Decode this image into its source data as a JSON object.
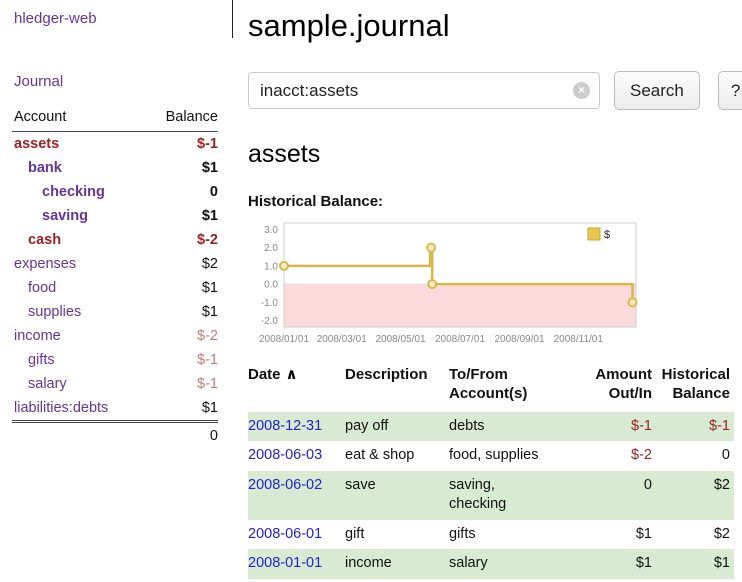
{
  "app": {
    "title": "hledger-web"
  },
  "sidebar": {
    "journal_link": "Journal",
    "header": {
      "account": "Account",
      "balance": "Balance"
    },
    "accounts": [
      {
        "name": "assets",
        "depth": 1,
        "bold": true,
        "red": true,
        "balance": "$-1",
        "balance_style": "neg-strong"
      },
      {
        "name": "bank",
        "depth": 2,
        "bold": true,
        "red": false,
        "balance": "$1",
        "balance_style": "pos"
      },
      {
        "name": "checking",
        "depth": 3,
        "bold": true,
        "red": false,
        "balance": "0",
        "balance_style": "pos"
      },
      {
        "name": "saving",
        "depth": 3,
        "bold": true,
        "red": false,
        "balance": "$1",
        "balance_style": "pos"
      },
      {
        "name": "cash",
        "depth": 2,
        "bold": true,
        "red": true,
        "balance": "$-2",
        "balance_style": "neg-strong"
      },
      {
        "name": "expenses",
        "depth": 1,
        "bold": false,
        "red": false,
        "balance": "$2",
        "balance_style": "pos"
      },
      {
        "name": "food",
        "depth": 2,
        "bold": false,
        "red": false,
        "balance": "$1",
        "balance_style": "pos"
      },
      {
        "name": "supplies",
        "depth": 2,
        "bold": false,
        "red": false,
        "balance": "$1",
        "balance_style": "pos"
      },
      {
        "name": "income",
        "depth": 1,
        "bold": false,
        "red": false,
        "balance": "$-2",
        "balance_style": "neg-soft"
      },
      {
        "name": "gifts",
        "depth": 2,
        "bold": false,
        "red": false,
        "balance": "$-1",
        "balance_style": "neg-soft"
      },
      {
        "name": "salary",
        "depth": 2,
        "bold": false,
        "red": false,
        "balance": "$-1",
        "balance_style": "neg-soft"
      },
      {
        "name": "liabilities:debts",
        "depth": 1,
        "bold": false,
        "red": false,
        "balance": "$1",
        "balance_style": "pos"
      }
    ],
    "total": "0"
  },
  "main": {
    "title": "sample.journal",
    "heading": "assets",
    "chart_label": "Historical Balance:"
  },
  "search": {
    "value": "inacct:assets",
    "clear_icon": "×",
    "button_label": "Search",
    "help_label": "?"
  },
  "chart_data": {
    "type": "line",
    "title": "Historical Balance",
    "ylim": [
      -2,
      3
    ],
    "yticks": [
      3.0,
      2.0,
      1.0,
      0.0,
      -1.0,
      -2.0
    ],
    "xticks": [
      "2008/01/01",
      "2008/03/01",
      "2008/05/01",
      "2008/07/01",
      "2008/09/01",
      "2008/11/01"
    ],
    "xtick_pos": [
      0,
      0.164,
      0.331,
      0.5,
      0.669,
      0.836
    ],
    "series": [
      {
        "name": "$",
        "color": "#d8b84a",
        "marker_fill": "#f7ecc3",
        "points": [
          [
            0,
            1
          ],
          [
            0.415,
            1
          ],
          [
            0.415,
            2
          ],
          [
            0.421,
            2
          ],
          [
            0.421,
            0
          ],
          [
            0.99,
            0
          ],
          [
            0.99,
            -1
          ]
        ],
        "markers": [
          [
            0,
            1
          ],
          [
            0.418,
            2
          ],
          [
            0.421,
            0
          ],
          [
            0.99,
            -1
          ]
        ]
      }
    ],
    "negative_region_color": "#fadada",
    "legend": {
      "position": "top-right",
      "swatch_fill": "#e6c84f",
      "swatch_border": "#caa42e"
    }
  },
  "transactions": {
    "sort_icon": "∧",
    "columns": [
      {
        "lines": [
          "Date"
        ],
        "align": "left",
        "sortable": true
      },
      {
        "lines": [
          "Description"
        ],
        "align": "left",
        "sortable": false
      },
      {
        "lines": [
          "To/From",
          "Account(s)"
        ],
        "align": "left",
        "sortable": false
      },
      {
        "lines": [
          "Amount",
          "Out/In"
        ],
        "align": "right",
        "sortable": false
      },
      {
        "lines": [
          "Historical",
          "Balance"
        ],
        "align": "right",
        "sortable": false
      }
    ],
    "rows": [
      {
        "date": "2008-12-31",
        "description": "pay off",
        "accounts_lines": [
          "debts"
        ],
        "amount": "$-1",
        "balance": "$-1",
        "shaded": true
      },
      {
        "date": "2008-06-03",
        "description": "eat & shop",
        "accounts_lines": [
          "food, supplies"
        ],
        "amount": "$-2",
        "balance": "0",
        "shaded": false
      },
      {
        "date": "2008-06-02",
        "description": "save",
        "accounts_lines": [
          "saving,",
          "checking"
        ],
        "amount": "0",
        "balance": "$2",
        "shaded": true
      },
      {
        "date": "2008-06-01",
        "description": "gift",
        "accounts_lines": [
          "gifts"
        ],
        "amount": "$1",
        "balance": "$2",
        "shaded": false
      },
      {
        "date": "2008-01-01",
        "description": "income",
        "accounts_lines": [
          "salary"
        ],
        "amount": "$1",
        "balance": "$1",
        "shaded": true
      }
    ]
  },
  "colors": {
    "link_purple": "#663399",
    "date_blue": "#2222cc",
    "neg_strong": "#992222",
    "neg_soft": "#c17979",
    "row_green": "#d9ead2"
  }
}
